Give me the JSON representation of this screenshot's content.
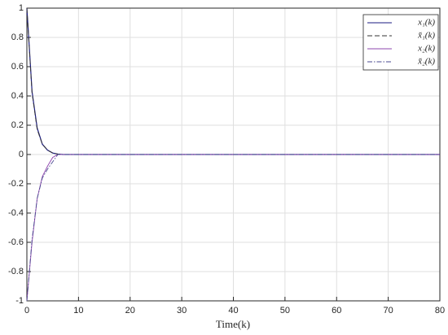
{
  "chart_data": {
    "type": "line",
    "x_label": "Time(k)",
    "x": [
      0,
      1,
      2,
      3,
      4,
      5,
      6,
      7,
      8,
      80
    ],
    "series": [
      {
        "name": "x₁(k)",
        "color": "#1a1a80",
        "dash": "solid",
        "values": [
          1,
          0.43,
          0.18,
          0.07,
          0.03,
          0.01,
          0.003,
          0,
          0,
          0
        ]
      },
      {
        "name": "x̆₁(k)",
        "color": "#333333",
        "dash": "dashed",
        "values": [
          1,
          0.42,
          0.17,
          0.07,
          0.03,
          0.01,
          0.003,
          0,
          0,
          0
        ]
      },
      {
        "name": "x₂(k)",
        "color": "#8e44ad",
        "dash": "solid",
        "values": [
          -1,
          -0.6,
          -0.3,
          -0.15,
          -0.08,
          -0.02,
          0,
          0,
          0,
          0
        ]
      },
      {
        "name": "x̆₂(k)",
        "color": "#4a4a90",
        "dash": "dashdot",
        "values": [
          -1,
          -0.58,
          -0.3,
          -0.16,
          -0.1,
          -0.05,
          0,
          0,
          0,
          0
        ]
      }
    ],
    "xlim": [
      0,
      80
    ],
    "xticks": [
      0,
      10,
      20,
      30,
      40,
      50,
      60,
      70,
      80
    ],
    "ylim": [
      -1,
      1
    ],
    "yticks": [
      -1,
      -0.8,
      -0.6,
      -0.4,
      -0.2,
      0,
      0.2,
      0.4,
      0.6,
      0.8,
      1
    ],
    "grid": true,
    "legend": "top-right"
  }
}
